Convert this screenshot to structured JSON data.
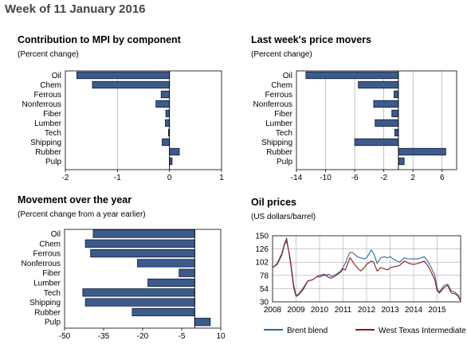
{
  "page_title": "Week of 11 January 2016",
  "colors": {
    "bar": "#3d5a8c",
    "brent": "#2e6aa0",
    "wti": "#8b1a1a"
  },
  "chart_data": [
    {
      "id": "mpi",
      "type": "bar",
      "orientation": "horizontal",
      "title": "Contribution to MPI by component",
      "subtitle": "(Percent change)",
      "categories": [
        "Oil",
        "Chem",
        "Ferrous",
        "Nonferrous",
        "Fiber",
        "Lumber",
        "Tech",
        "Shipping",
        "Rubber",
        "Pulp"
      ],
      "values": [
        -1.78,
        -1.48,
        -0.16,
        -0.26,
        -0.07,
        -0.08,
        -0.02,
        -0.14,
        0.19,
        0.05
      ],
      "xlim": [
        -2,
        1
      ],
      "ticks": [
        -2,
        -1,
        0,
        1
      ],
      "grid": true
    },
    {
      "id": "movers",
      "type": "bar",
      "orientation": "horizontal",
      "title": "Last week's price movers",
      "subtitle": "(Percent change)",
      "categories": [
        "Oil",
        "Chem",
        "Ferrous",
        "Nonferrous",
        "Fiber",
        "Lumber",
        "Tech",
        "Shipping",
        "Rubber",
        "Pulp"
      ],
      "values": [
        -12.7,
        -5.5,
        -0.6,
        -3.4,
        -0.9,
        -3.2,
        -0.5,
        -6.0,
        6.5,
        0.8
      ],
      "xlim": [
        -14,
        8
      ],
      "ticks": [
        -14,
        -10,
        -6,
        -2,
        2,
        6
      ],
      "grid": true
    },
    {
      "id": "year",
      "type": "bar",
      "orientation": "horizontal",
      "title": "Movement over the year",
      "subtitle": "(Percent change from a year earlier)",
      "categories": [
        "Oil",
        "Chem",
        "Ferrous",
        "Nonferrous",
        "Fiber",
        "Lumber",
        "Tech",
        "Shipping",
        "Rubber",
        "Pulp"
      ],
      "values": [
        -39,
        -42,
        -40,
        -22,
        -6,
        -18,
        -43,
        -42,
        -24,
        6
      ],
      "xlim": [
        -50,
        10
      ],
      "ticks": [
        -50,
        -35,
        -20,
        -5,
        10
      ],
      "grid": false
    },
    {
      "id": "oil",
      "type": "line",
      "title": "Oil prices",
      "subtitle": "(US dollars/barrel)",
      "x_ticks": [
        "2008",
        "2009",
        "2010",
        "2011",
        "2012",
        "2013",
        "2014",
        "2015"
      ],
      "xlim": [
        2008,
        2016
      ],
      "ylim": [
        30,
        150
      ],
      "y_ticks": [
        30,
        54,
        78,
        102,
        126,
        150
      ],
      "grid": true,
      "series": [
        {
          "name": "Brent blend",
          "color": "#2e6aa0",
          "x": [
            2008.0,
            2008.2,
            2008.4,
            2008.5,
            2008.6,
            2008.75,
            2008.9,
            2009.0,
            2009.1,
            2009.3,
            2009.5,
            2009.7,
            2009.9,
            2010.0,
            2010.2,
            2010.4,
            2010.5,
            2010.7,
            2010.9,
            2011.0,
            2011.1,
            2011.2,
            2011.3,
            2011.45,
            2011.6,
            2011.75,
            2011.9,
            2012.0,
            2012.2,
            2012.3,
            2012.45,
            2012.6,
            2012.75,
            2012.9,
            2013.0,
            2013.2,
            2013.4,
            2013.6,
            2013.8,
            2014.0,
            2014.2,
            2014.45,
            2014.6,
            2014.75,
            2014.9,
            2015.0,
            2015.1,
            2015.3,
            2015.45,
            2015.6,
            2015.75,
            2015.9,
            2016.0
          ],
          "y": [
            92,
            98,
            115,
            133,
            140,
            110,
            60,
            42,
            44,
            55,
            68,
            70,
            76,
            75,
            78,
            80,
            76,
            80,
            86,
            93,
            100,
            112,
            120,
            118,
            112,
            110,
            108,
            110,
            124,
            118,
            100,
            110,
            112,
            110,
            112,
            106,
            102,
            110,
            108,
            108,
            108,
            112,
            104,
            92,
            78,
            55,
            48,
            60,
            62,
            50,
            48,
            42,
            32
          ]
        },
        {
          "name": "West Texas Intermediate",
          "color": "#8b1a1a",
          "x": [
            2008.0,
            2008.2,
            2008.4,
            2008.5,
            2008.6,
            2008.75,
            2008.9,
            2009.0,
            2009.1,
            2009.3,
            2009.5,
            2009.7,
            2009.9,
            2010.0,
            2010.2,
            2010.4,
            2010.5,
            2010.7,
            2010.9,
            2011.0,
            2011.1,
            2011.2,
            2011.3,
            2011.45,
            2011.6,
            2011.75,
            2011.9,
            2012.0,
            2012.2,
            2012.3,
            2012.45,
            2012.6,
            2012.75,
            2012.9,
            2013.0,
            2013.2,
            2013.4,
            2013.6,
            2013.8,
            2014.0,
            2014.2,
            2014.45,
            2014.6,
            2014.75,
            2014.9,
            2015.0,
            2015.1,
            2015.3,
            2015.45,
            2015.6,
            2015.75,
            2015.9,
            2016.0
          ],
          "y": [
            92,
            100,
            118,
            135,
            145,
            105,
            55,
            40,
            42,
            52,
            68,
            70,
            76,
            78,
            80,
            74,
            73,
            78,
            84,
            90,
            88,
            100,
            110,
            100,
            92,
            86,
            92,
            98,
            104,
            102,
            86,
            92,
            90,
            88,
            92,
            94,
            96,
            104,
            100,
            98,
            100,
            104,
            96,
            84,
            70,
            50,
            46,
            56,
            60,
            46,
            45,
            40,
            31
          ]
        }
      ]
    }
  ]
}
